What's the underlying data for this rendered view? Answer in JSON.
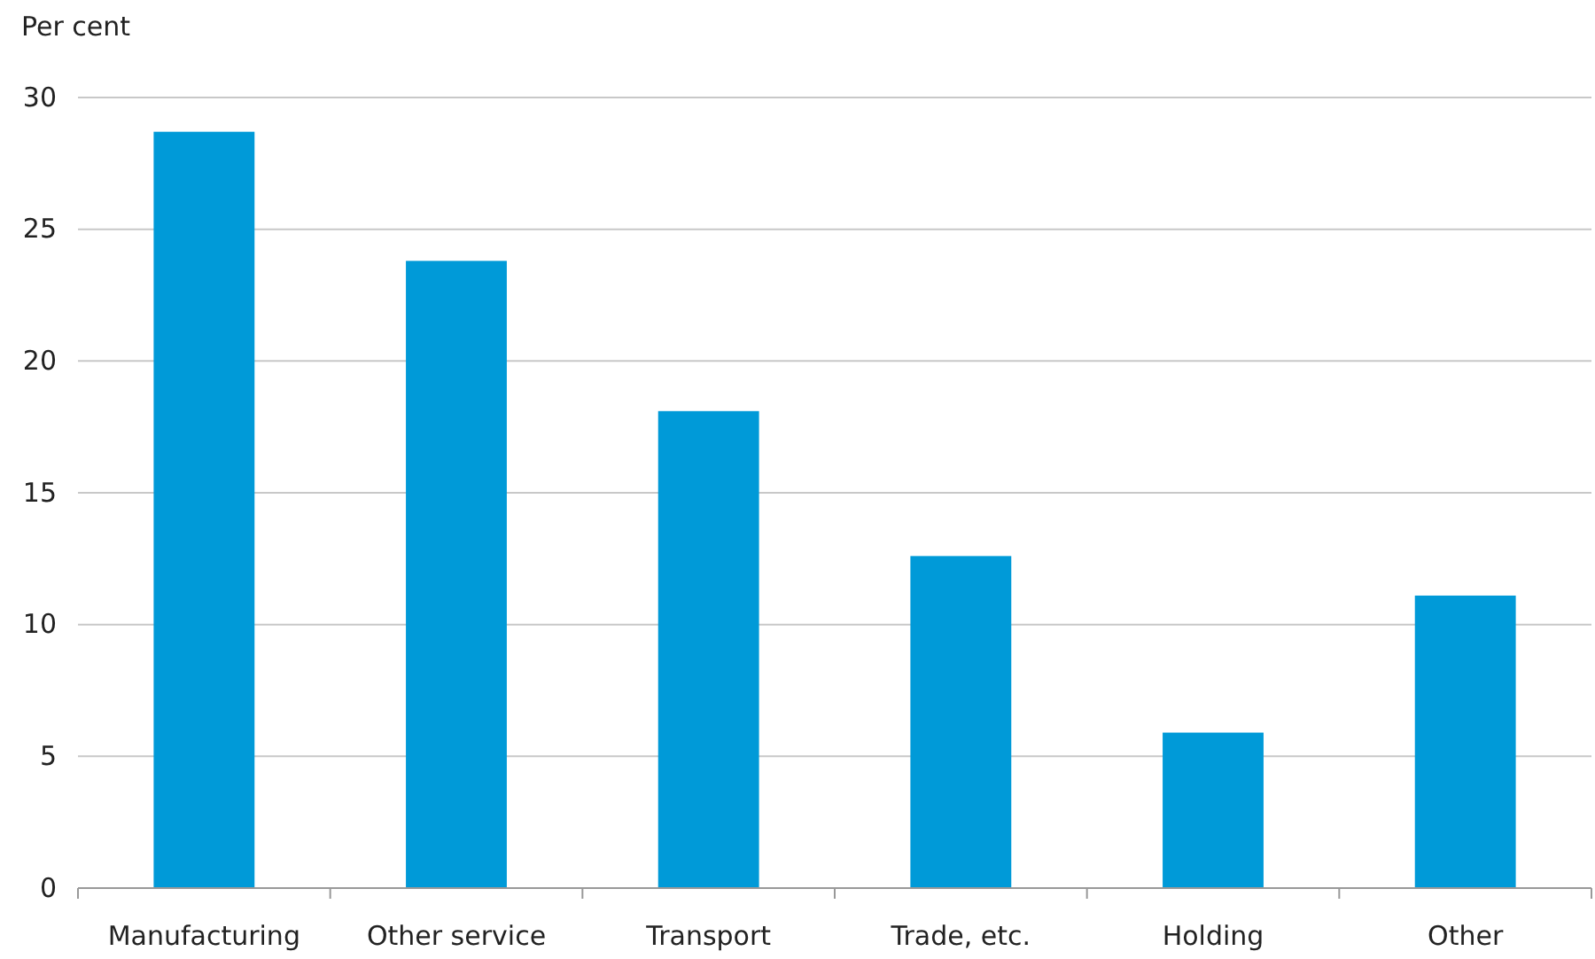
{
  "chart_data": {
    "type": "bar",
    "ylabel": "Per cent",
    "categories": [
      "Manufacturing",
      "Other service",
      "Transport",
      "Trade, etc.",
      "Holding",
      "Other"
    ],
    "values": [
      28.7,
      23.8,
      18.1,
      12.6,
      5.9,
      11.1
    ],
    "color": "#009ad8",
    "ylim": [
      0,
      30
    ],
    "yticks": [
      0,
      5,
      10,
      15,
      20,
      25,
      30
    ],
    "grid": "y"
  }
}
